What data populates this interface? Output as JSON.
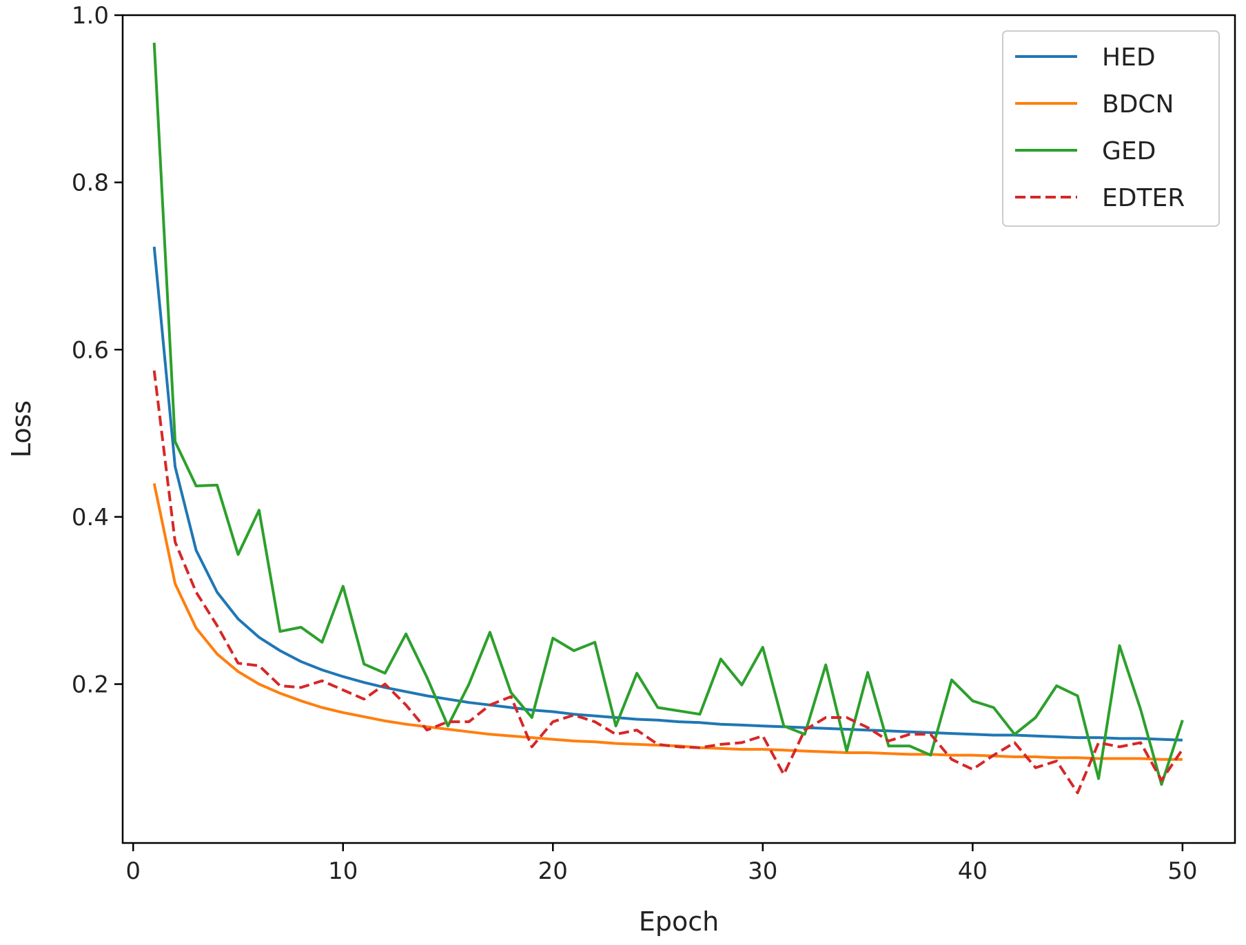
{
  "chart_data": {
    "type": "line",
    "title": "",
    "xlabel": "Epoch",
    "ylabel": "Loss",
    "xlim": [
      -0.5,
      52.5
    ],
    "ylim": [
      0.01,
      1.0
    ],
    "xticks": [
      "0",
      "10",
      "20",
      "30",
      "40",
      "50"
    ],
    "yticks": [
      "0.2",
      "0.4",
      "0.6",
      "0.8",
      "1.0"
    ],
    "grid": false,
    "legend": "top-right",
    "x": [
      1,
      2,
      3,
      4,
      5,
      6,
      7,
      8,
      9,
      10,
      11,
      12,
      13,
      14,
      15,
      16,
      17,
      18,
      19,
      20,
      21,
      22,
      23,
      24,
      25,
      26,
      27,
      28,
      29,
      30,
      31,
      32,
      33,
      34,
      35,
      36,
      37,
      38,
      39,
      40,
      41,
      42,
      43,
      44,
      45,
      46,
      47,
      48,
      49,
      50
    ],
    "series": [
      {
        "name": "HED",
        "color": "#1f77b4",
        "dash": "solid",
        "values": [
          0.723,
          0.46,
          0.36,
          0.31,
          0.278,
          0.256,
          0.24,
          0.227,
          0.217,
          0.209,
          0.202,
          0.196,
          0.191,
          0.186,
          0.182,
          0.178,
          0.175,
          0.172,
          0.169,
          0.167,
          0.164,
          0.162,
          0.16,
          0.158,
          0.157,
          0.155,
          0.154,
          0.152,
          0.151,
          0.15,
          0.149,
          0.148,
          0.147,
          0.146,
          0.145,
          0.144,
          0.143,
          0.142,
          0.141,
          0.14,
          0.139,
          0.139,
          0.138,
          0.137,
          0.136,
          0.136,
          0.135,
          0.135,
          0.134,
          0.133
        ]
      },
      {
        "name": "BDCN",
        "color": "#ff7f0e",
        "dash": "solid",
        "values": [
          0.44,
          0.32,
          0.267,
          0.236,
          0.215,
          0.2,
          0.189,
          0.18,
          0.172,
          0.166,
          0.161,
          0.156,
          0.152,
          0.149,
          0.146,
          0.143,
          0.14,
          0.138,
          0.136,
          0.134,
          0.132,
          0.131,
          0.129,
          0.128,
          0.127,
          0.126,
          0.124,
          0.123,
          0.122,
          0.122,
          0.121,
          0.12,
          0.119,
          0.118,
          0.118,
          0.117,
          0.116,
          0.116,
          0.115,
          0.115,
          0.114,
          0.113,
          0.113,
          0.112,
          0.112,
          0.111,
          0.111,
          0.111,
          0.11,
          0.11
        ]
      },
      {
        "name": "GED",
        "color": "#2ca02c",
        "dash": "solid",
        "values": [
          0.967,
          0.49,
          0.437,
          0.438,
          0.355,
          0.408,
          0.263,
          0.268,
          0.25,
          0.317,
          0.224,
          0.213,
          0.26,
          0.208,
          0.15,
          0.2,
          0.262,
          0.19,
          0.16,
          0.255,
          0.24,
          0.25,
          0.15,
          0.213,
          0.172,
          0.168,
          0.164,
          0.23,
          0.199,
          0.244,
          0.15,
          0.14,
          0.223,
          0.12,
          0.214,
          0.126,
          0.126,
          0.115,
          0.205,
          0.18,
          0.172,
          0.14,
          0.16,
          0.198,
          0.186,
          0.087,
          0.246,
          0.17,
          0.08,
          0.157
        ]
      },
      {
        "name": "EDTER",
        "color": "#d62728",
        "dash": "dashed",
        "values": [
          0.575,
          0.37,
          0.31,
          0.27,
          0.225,
          0.222,
          0.198,
          0.196,
          0.204,
          0.193,
          0.182,
          0.2,
          0.175,
          0.145,
          0.155,
          0.155,
          0.175,
          0.185,
          0.125,
          0.155,
          0.163,
          0.155,
          0.14,
          0.145,
          0.128,
          0.125,
          0.124,
          0.128,
          0.13,
          0.138,
          0.092,
          0.145,
          0.16,
          0.16,
          0.148,
          0.132,
          0.14,
          0.14,
          0.11,
          0.098,
          0.115,
          0.13,
          0.1,
          0.108,
          0.07,
          0.13,
          0.125,
          0.13,
          0.085,
          0.122
        ]
      }
    ]
  }
}
